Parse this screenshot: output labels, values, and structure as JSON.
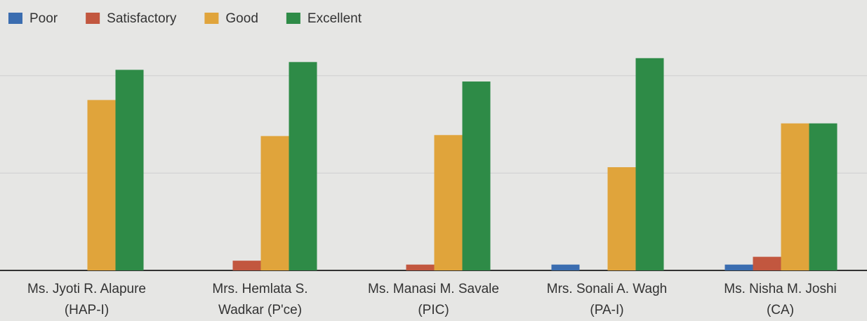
{
  "chart_data": {
    "type": "bar",
    "categories": [
      [
        "Ms. Jyoti R. Alapure",
        "(HAP-I)"
      ],
      [
        "Mrs. Hemlata S.",
        "Wadkar (P'ce)"
      ],
      [
        "Ms. Manasi M. Savale",
        "(PIC)"
      ],
      [
        "Mrs. Sonali A. Wagh",
        "(PA-I)"
      ],
      [
        "Ms. Nisha M. Joshi",
        "(CA)"
      ]
    ],
    "series": [
      {
        "name": "Poor",
        "color": "#3b6db0",
        "values": [
          0,
          0,
          0,
          0.6,
          0.6
        ]
      },
      {
        "name": "Satisfactory",
        "color": "#c2573f",
        "values": [
          0,
          1,
          0.6,
          0,
          1.4
        ]
      },
      {
        "name": "Good",
        "color": "#e0a43b",
        "values": [
          17.5,
          13.8,
          13.9,
          10.6,
          15.1
        ]
      },
      {
        "name": "Excellent",
        "color": "#2e8b47",
        "values": [
          20.6,
          21.4,
          19.4,
          21.8,
          15.1
        ]
      }
    ],
    "ylim": [
      0,
      22
    ],
    "yticks": [
      0,
      10,
      20
    ],
    "grid": true,
    "legend": "top-left"
  }
}
